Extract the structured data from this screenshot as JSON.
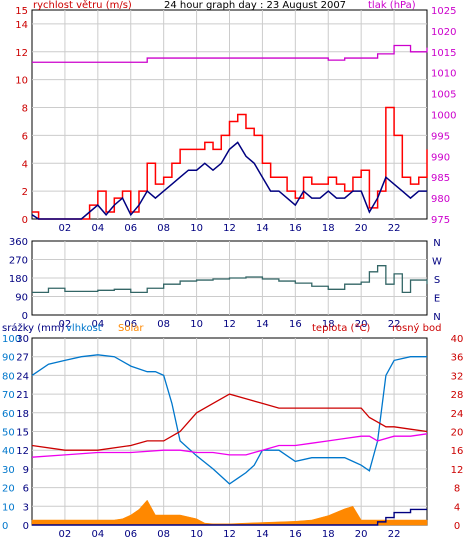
{
  "header": {
    "wind_label": "rychlost větru (m/s)",
    "title": "24 hour graph day : 23 August 2007",
    "pressure_label": "tlak (hPa)"
  },
  "footer": {
    "rain_label": "srážky (mm)",
    "humidity_label": "vlhkost",
    "solar_label": "Solar",
    "temp_label": "teplota (°C)",
    "dew_label": "rosný bod"
  },
  "colors": {
    "wind_gust": "#ff0000",
    "wind_avg": "#000080",
    "pressure": "#cc00cc",
    "direction": "#336666",
    "humidity": "#0077cc",
    "temperature": "#cc0000",
    "dew_point": "#ee00ee",
    "solar": "#ff8800",
    "rain": "#000080",
    "grid": "#cccccc",
    "axis_text_wind": "#cc0000",
    "axis_text_pressure": "#cc00cc",
    "axis_text_dir": "#000080",
    "axis_text_left3": "#0077cc",
    "axis_text_right3": "#cc0000"
  },
  "chart_data": [
    {
      "type": "line",
      "x_ticks": [
        "02",
        "04",
        "06",
        "08",
        "10",
        "12",
        "14",
        "16",
        "18",
        "20",
        "22"
      ],
      "xlim": [
        0,
        24
      ],
      "y_left": {
        "ticks": [
          "0",
          "2",
          "4",
          "6",
          "8",
          "10",
          "12",
          "14",
          "15"
        ],
        "ylim": [
          0,
          15
        ]
      },
      "y_right": {
        "ticks": [
          "975",
          "980",
          "985",
          "990",
          "995",
          "1000",
          "1005",
          "1010",
          "1015",
          "1020",
          "1025"
        ],
        "ylim": [
          975,
          1025
        ]
      },
      "series": [
        {
          "name": "wind_gust",
          "axis": "left",
          "x": [
            0,
            0.4,
            1,
            2,
            3,
            3.5,
            4,
            4.5,
            5,
            5.5,
            6,
            6.5,
            7,
            7.5,
            8,
            8.5,
            9,
            9.5,
            10,
            10.5,
            11,
            11.5,
            12,
            12.5,
            13,
            13.5,
            14,
            14.5,
            15,
            15.5,
            16,
            16.5,
            17,
            17.5,
            18,
            18.5,
            19,
            19.5,
            20,
            20.5,
            21,
            21.5,
            22,
            22.5,
            23,
            23.5,
            24
          ],
          "values": [
            0.5,
            0,
            0,
            0,
            0,
            1,
            2,
            0.5,
            1.5,
            2,
            0.5,
            2,
            4,
            2.5,
            3,
            4,
            5,
            5,
            5,
            5.5,
            5,
            6,
            7,
            7.5,
            6.5,
            6,
            4,
            3,
            3,
            2,
            1.5,
            3,
            2.5,
            2.5,
            3,
            2.5,
            2,
            3,
            3.5,
            0.8,
            2,
            8,
            6,
            3,
            2.5,
            3,
            5
          ]
        },
        {
          "name": "wind_avg",
          "axis": "left",
          "x": [
            0,
            0.4,
            1,
            2,
            3,
            3.5,
            4,
            4.5,
            5,
            5.5,
            6,
            6.5,
            7,
            7.5,
            8,
            8.5,
            9,
            9.5,
            10,
            10.5,
            11,
            11.5,
            12,
            12.5,
            13,
            13.5,
            14,
            14.5,
            15,
            15.5,
            16,
            16.5,
            17,
            17.5,
            18,
            18.5,
            19,
            19.5,
            20,
            20.5,
            21,
            21.5,
            22,
            22.5,
            23,
            23.5,
            24
          ],
          "values": [
            0.3,
            0,
            0,
            0,
            0,
            0.5,
            1,
            0.3,
            1,
            1.5,
            0.3,
            1,
            2,
            1.5,
            2,
            2.5,
            3,
            3.5,
            3.5,
            4,
            3.5,
            4,
            5,
            5.5,
            4.5,
            4,
            3,
            2,
            2,
            1.5,
            1,
            2,
            1.5,
            1.5,
            2,
            1.5,
            1.5,
            2,
            2,
            0.5,
            1.5,
            3,
            2.5,
            2,
            1.5,
            2,
            2
          ]
        },
        {
          "name": "pressure",
          "axis": "right",
          "x": [
            0,
            3,
            6,
            7,
            8,
            10,
            12,
            13,
            14,
            15,
            16,
            17,
            18,
            19,
            20,
            21,
            22,
            23,
            24
          ],
          "values": [
            1012.5,
            1012.5,
            1012.5,
            1013.5,
            1013.5,
            1013.5,
            1013.5,
            1013.5,
            1013.5,
            1013.5,
            1013.5,
            1013.5,
            1013,
            1013.5,
            1013.5,
            1014.5,
            1016.5,
            1015,
            1016
          ]
        }
      ]
    },
    {
      "type": "line",
      "x_ticks": [
        "02",
        "04",
        "06",
        "08",
        "10",
        "12",
        "14",
        "16",
        "18",
        "20",
        "22"
      ],
      "xlim": [
        0,
        24
      ],
      "y_left": {
        "ticks": [
          "0",
          "90",
          "180",
          "270",
          "360"
        ],
        "ylim": [
          0,
          360
        ]
      },
      "y_right": {
        "ticks": [
          "N",
          "E",
          "S",
          "W",
          "N"
        ]
      },
      "series": [
        {
          "name": "wind_direction",
          "x": [
            0,
            1,
            2,
            3,
            4,
            5,
            6,
            7,
            8,
            9,
            10,
            11,
            12,
            13,
            14,
            15,
            16,
            17,
            18,
            19,
            20,
            20.5,
            21,
            21.5,
            22,
            22.5,
            23,
            24
          ],
          "values": [
            110,
            130,
            115,
            115,
            120,
            125,
            110,
            130,
            150,
            165,
            170,
            175,
            180,
            185,
            175,
            165,
            155,
            140,
            125,
            150,
            160,
            210,
            240,
            150,
            200,
            110,
            170,
            150
          ]
        }
      ]
    },
    {
      "type": "line",
      "x_ticks": [
        "02",
        "04",
        "06",
        "08",
        "10",
        "12",
        "14",
        "16",
        "18",
        "20",
        "22"
      ],
      "xlim": [
        0,
        24
      ],
      "y_left_rain": {
        "ticks": [
          "0",
          "3",
          "6",
          "9",
          "12",
          "15",
          "18",
          "21",
          "24",
          "27",
          "30"
        ],
        "ylim": [
          0,
          30
        ]
      },
      "y_left_humidity": {
        "ticks": [
          "0",
          "10",
          "20",
          "30",
          "40",
          "50",
          "60",
          "70",
          "80",
          "90",
          "100"
        ],
        "ylim": [
          0,
          100
        ]
      },
      "y_right_temp": {
        "ticks": [
          "0",
          "4",
          "8",
          "12",
          "16",
          "20",
          "24",
          "28",
          "32",
          "36",
          "40"
        ],
        "ylim": [
          0,
          40
        ]
      },
      "series": [
        {
          "name": "humidity",
          "axis": "humidity",
          "x": [
            0,
            1,
            2,
            3,
            4,
            5,
            6,
            7,
            7.5,
            8,
            8.5,
            9,
            10,
            11,
            12,
            12.5,
            13,
            13.5,
            14,
            15,
            16,
            17,
            18,
            19,
            19.5,
            20,
            20.5,
            21,
            21.5,
            22,
            23,
            24
          ],
          "values": [
            80,
            86,
            88,
            90,
            91,
            90,
            85,
            82,
            82,
            80,
            65,
            45,
            37,
            30,
            22,
            25,
            28,
            32,
            40,
            40,
            34,
            36,
            36,
            36,
            34,
            32,
            29,
            45,
            80,
            88,
            90,
            90
          ]
        },
        {
          "name": "temperature",
          "axis": "temp",
          "x": [
            0,
            2,
            4,
            6,
            7,
            8,
            9,
            10,
            11,
            12,
            13,
            14,
            15,
            16,
            17,
            18,
            19,
            20,
            20.5,
            21,
            21.5,
            22,
            23,
            24
          ],
          "values": [
            17,
            16,
            16,
            17,
            18,
            18,
            20,
            24,
            26,
            28,
            27,
            26,
            25,
            25,
            25,
            25,
            25,
            25,
            23,
            22,
            21,
            21,
            20.5,
            20
          ]
        },
        {
          "name": "dew_point",
          "axis": "temp",
          "x": [
            0,
            2,
            4,
            6,
            8,
            9,
            10,
            11,
            12,
            13,
            14,
            15,
            16,
            17,
            18,
            19,
            20,
            20.5,
            21,
            22,
            23,
            24
          ],
          "values": [
            14.5,
            15,
            15.5,
            15.5,
            16,
            16,
            15.5,
            15.5,
            15,
            15,
            16,
            17,
            17,
            17.5,
            18,
            18.5,
            19,
            19,
            18,
            19,
            19,
            19.5
          ]
        },
        {
          "name": "solar",
          "axis": "rain",
          "x": [
            0,
            5,
            5.5,
            6,
            6.5,
            7,
            7.5,
            8,
            9,
            10,
            10.5,
            11,
            12,
            13,
            14,
            15,
            16,
            17,
            18,
            19,
            19.5,
            20,
            20.5,
            21,
            24
          ],
          "values": [
            0.8,
            0.8,
            1.0,
            1.6,
            2.5,
            4,
            1.6,
            1.6,
            1.6,
            1,
            0.3,
            0.2,
            0.2,
            0.3,
            0.4,
            0.5,
            0.6,
            0.8,
            1.5,
            2.6,
            3,
            0.8,
            0.8,
            0.8,
            0.8
          ]
        },
        {
          "name": "rain",
          "axis": "rain",
          "x": [
            0,
            20,
            20.5,
            21,
            21.5,
            22,
            23,
            24
          ],
          "values": [
            0,
            0,
            0,
            0.5,
            1.2,
            2,
            2.5,
            2.5
          ]
        }
      ]
    }
  ]
}
